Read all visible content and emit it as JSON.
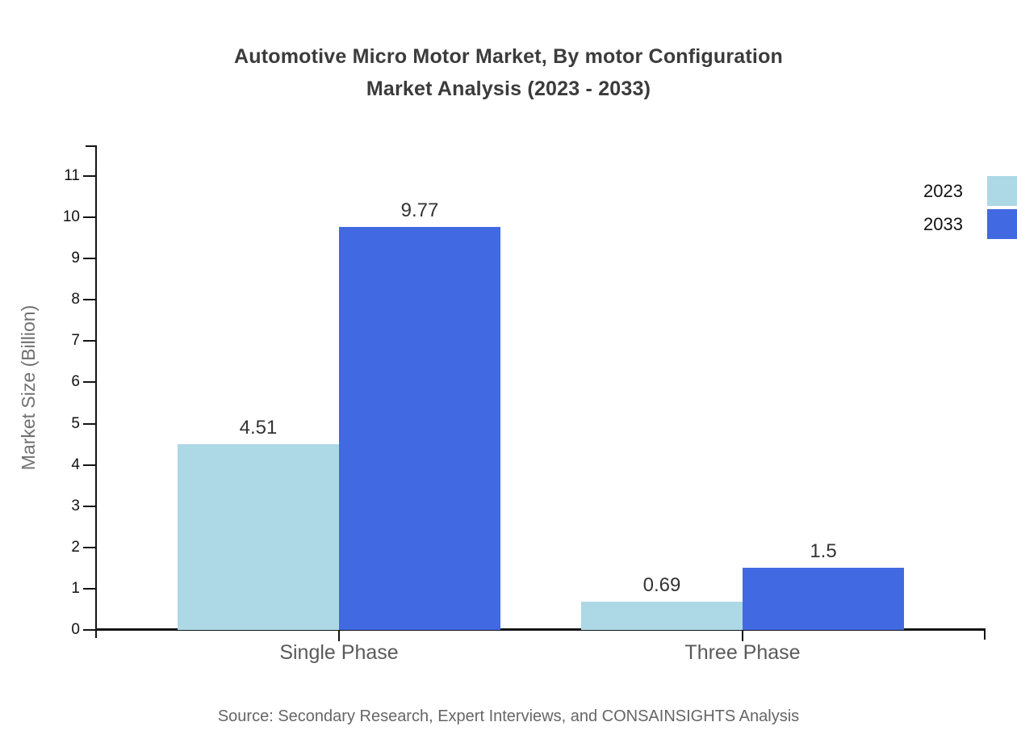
{
  "page": {
    "title_line1": "Automotive Micro Motor Market, By motor Configuration",
    "title_line2": "Market Analysis (2023 - 2033)",
    "source": "Source: Secondary Research, Expert Interviews, and CONSAINSIGHTS Analysis"
  },
  "chart_data": {
    "type": "bar",
    "title": "Automotive Micro Motor Market, By motor Configuration Market Analysis (2023 - 2033)",
    "categories": [
      "Single Phase",
      "Three Phase"
    ],
    "series": [
      {
        "name": "2023",
        "color": "#ADD8E6",
        "values": [
          4.51,
          0.69
        ]
      },
      {
        "name": "2033",
        "color": "#4169E1",
        "values": [
          9.77,
          1.5
        ]
      }
    ],
    "value_labels": [
      [
        "4.51",
        "0.69"
      ],
      [
        "9.77",
        "1.5"
      ]
    ],
    "xlabel": "",
    "ylabel": "Market Size (Billion)",
    "ylim": [
      0,
      11
    ],
    "yticks": [
      0,
      1,
      2,
      3,
      4,
      5,
      6,
      7,
      8,
      9,
      10,
      11
    ],
    "grid": false,
    "legend_position": "top-right",
    "axis_color": "#141414",
    "text_colors": {
      "title": "#3b3b3b",
      "category": "#5a5a5a",
      "value_label": "#333333",
      "axis_tick": "#111111",
      "y_axis_label": "#707070",
      "source": "#666666"
    }
  }
}
